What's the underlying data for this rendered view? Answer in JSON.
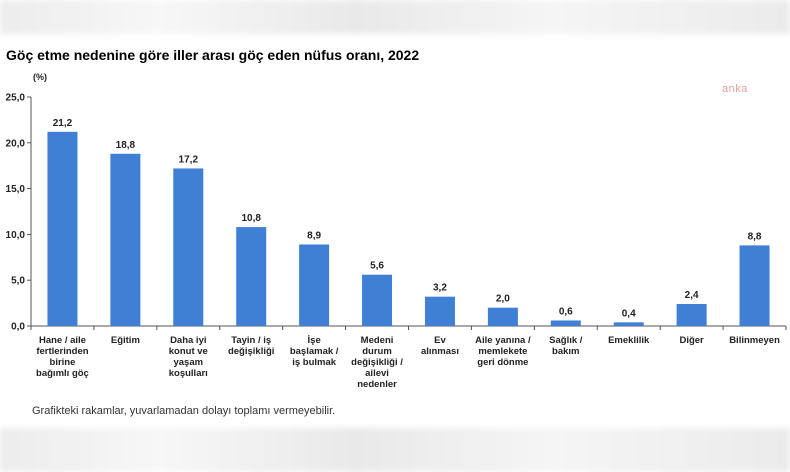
{
  "title": "Göç etme nedenine göre iller arası göç eden nüfus oranı, 2022",
  "watermark": "anka",
  "footnote": "Grafikteki rakamlar, yuvarlamadan dolayı toplamı vermeyebilir.",
  "chart_data": {
    "type": "bar",
    "title": "Göç etme nedenine göre iller arası göç eden nüfus oranı, 2022",
    "ylabel": "(%)",
    "xlabel": "",
    "ylim": [
      0,
      25
    ],
    "yticks": [
      "0,0",
      "5,0",
      "10,0",
      "15,0",
      "20,0",
      "25,0"
    ],
    "grid": false,
    "bar_color": "#3f7fd4",
    "categories": [
      [
        "Hane / aile",
        "fertlerinden",
        "birine",
        "bağımlı göç"
      ],
      [
        "Eğitim"
      ],
      [
        "Daha iyi",
        "konut ve",
        "yaşam",
        "koşulları"
      ],
      [
        "Tayin / iş",
        "değişikliği"
      ],
      [
        "İşe",
        "başlamak /",
        "iş bulmak"
      ],
      [
        "Medeni",
        "durum",
        "değişikliği /",
        "ailevi",
        "nedenler"
      ],
      [
        "Ev",
        "alınması"
      ],
      [
        "Aile yanına /",
        "memlekete",
        "geri dönme"
      ],
      [
        "Sağlık /",
        "bakım"
      ],
      [
        "Emeklilik"
      ],
      [
        "Diğer"
      ],
      [
        "Bilinmeyen"
      ]
    ],
    "values": [
      21.2,
      18.8,
      17.2,
      10.8,
      8.9,
      5.6,
      3.2,
      2.0,
      0.6,
      0.4,
      2.4,
      8.8
    ],
    "value_labels": [
      "21,2",
      "18,8",
      "17,2",
      "10,8",
      "8,9",
      "5,6",
      "3,2",
      "2,0",
      "0,6",
      "0,4",
      "2,4",
      "8,8"
    ]
  }
}
